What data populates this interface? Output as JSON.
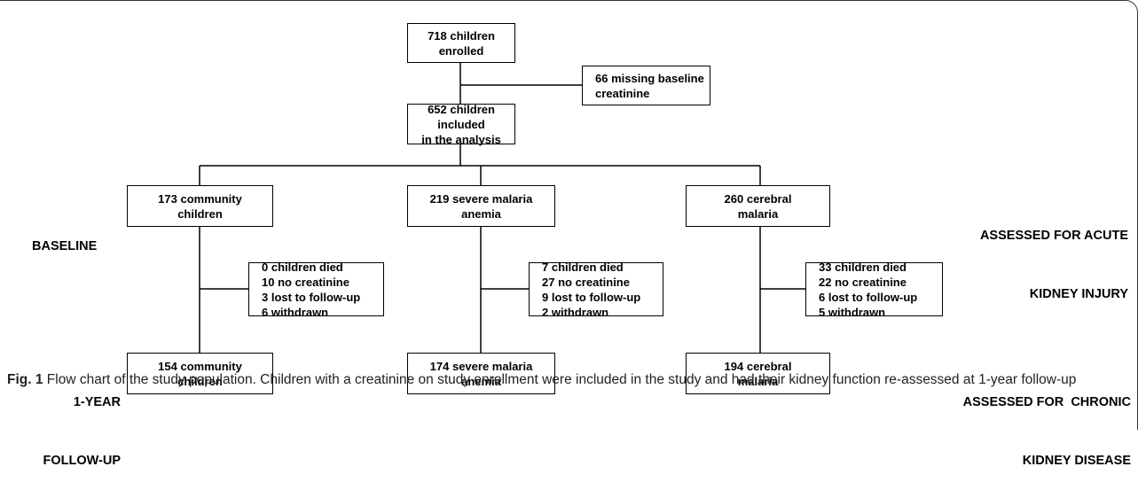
{
  "nodes": [
    {
      "lines": [
        "718 children enrolled"
      ]
    },
    {
      "lines": [
        "66 missing baseline",
        "creatinine"
      ]
    },
    {
      "lines": [
        "652 children included",
        "in the analysis"
      ]
    },
    {
      "lines": [
        "173 community",
        "children"
      ]
    },
    {
      "lines": [
        "219 severe malaria",
        "anemia"
      ]
    },
    {
      "lines": [
        "260 cerebral",
        "malaria"
      ]
    },
    {
      "lines": [
        "0 children died",
        "10 no creatinine",
        "3 lost to follow-up",
        "6 withdrawn"
      ]
    },
    {
      "lines": [
        "7 children died",
        "27 no creatinine",
        "9 lost to follow-up",
        "2 withdrawn"
      ]
    },
    {
      "lines": [
        "33 children died",
        "22 no creatinine",
        "6 lost to follow-up",
        "5 withdrawn"
      ]
    },
    {
      "lines": [
        "154 community",
        "children"
      ]
    },
    {
      "lines": [
        "174 severe malaria",
        "anemia"
      ]
    },
    {
      "lines": [
        "194 cerebral",
        "malaria"
      ]
    }
  ],
  "stage_labels": {
    "baseline": [
      "BASELINE"
    ],
    "follow_up": [
      "1-YEAR",
      "FOLLOW-UP"
    ]
  },
  "assessment_labels": {
    "acute": [
      "ASSESSED FOR ACUTE",
      "KIDNEY INJURY"
    ],
    "chronic": [
      "ASSESSED FOR  CHRONIC",
      "KIDNEY DISEASE"
    ]
  },
  "caption": {
    "label": "Fig. 1",
    "text": "Flow chart of the study population. Children with a creatinine on study enrollment were included in the study and had their kidney function re-assessed at 1-year follow-up"
  }
}
